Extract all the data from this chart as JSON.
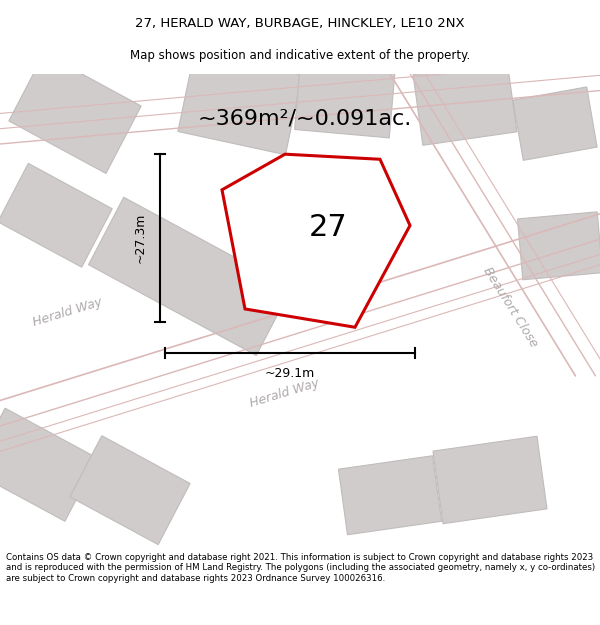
{
  "title_line1": "27, HERALD WAY, BURBAGE, HINCKLEY, LE10 2NX",
  "title_line2": "Map shows position and indicative extent of the property.",
  "area_label": "~369m²/~0.091ac.",
  "plot_number": "27",
  "dim_width": "~29.1m",
  "dim_height": "~27.3m",
  "footer": "Contains OS data © Crown copyright and database right 2021. This information is subject to Crown copyright and database rights 2023 and is reproduced with the permission of HM Land Registry. The polygons (including the associated geometry, namely x, y co-ordinates) are subject to Crown copyright and database rights 2023 Ordnance Survey 100026316.",
  "map_bg": "#e8e6e6",
  "plot_fill": "white",
  "plot_edge": "#cc0000",
  "road_color": "#dbb8b8",
  "building_color": "#d0cccc",
  "building_edge": "#c0bcbc",
  "street_label_color": "#b0aaaa",
  "herald_way_label": "Herald Way",
  "beaufort_close_label": "Beaufort Close",
  "title_fontsize": 9.5,
  "subtitle_fontsize": 8.5,
  "footer_fontsize": 6.2,
  "area_fontsize": 16,
  "plot_num_fontsize": 22,
  "dim_fontsize": 9,
  "street_fontsize": 9
}
